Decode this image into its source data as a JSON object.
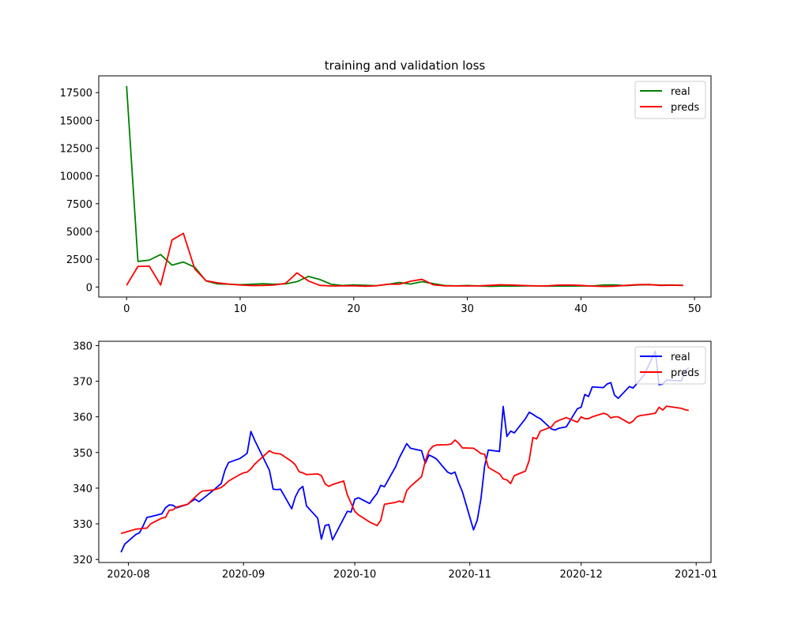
{
  "chart_data": [
    {
      "type": "line",
      "title": "training and validation loss",
      "xlabel": "",
      "ylabel": "",
      "xlim": [
        -2.45,
        51.45
      ],
      "ylim": [
        -905,
        19010
      ],
      "xticks": [
        0,
        10,
        20,
        30,
        40,
        50
      ],
      "xtick_labels": [
        "0",
        "10",
        "20",
        "30",
        "40",
        "50"
      ],
      "yticks": [
        0,
        2500,
        5000,
        7500,
        10000,
        12500,
        15000,
        17500
      ],
      "ytick_labels": [
        "0",
        "2500",
        "5000",
        "7500",
        "10000",
        "12500",
        "15000",
        "17500"
      ],
      "grid": false,
      "legend_position": "top-right",
      "x": [
        0,
        1,
        2,
        3,
        4,
        5,
        6,
        7,
        8,
        9,
        10,
        11,
        12,
        13,
        14,
        15,
        16,
        17,
        18,
        19,
        20,
        21,
        22,
        23,
        24,
        25,
        26,
        27,
        28,
        29,
        30,
        31,
        32,
        33,
        34,
        35,
        36,
        37,
        38,
        39,
        40,
        41,
        42,
        43,
        44,
        45,
        46,
        47,
        48,
        49
      ],
      "series": [
        {
          "name": "real",
          "color": "#008000",
          "values": [
            18100,
            2300,
            2420,
            2920,
            1970,
            2250,
            1780,
            540,
            280,
            250,
            200,
            250,
            290,
            250,
            280,
            480,
            950,
            680,
            250,
            130,
            190,
            150,
            120,
            230,
            410,
            260,
            480,
            300,
            130,
            100,
            130,
            100,
            60,
            80,
            80,
            90,
            110,
            80,
            80,
            80,
            90,
            90,
            180,
            190,
            120,
            180,
            210,
            170,
            180,
            150
          ]
        },
        {
          "name": "preds",
          "color": "#ff0000",
          "values": [
            150,
            1850,
            1880,
            180,
            4230,
            4830,
            1630,
            560,
            370,
            260,
            180,
            130,
            140,
            180,
            330,
            1270,
            550,
            150,
            90,
            100,
            110,
            70,
            110,
            250,
            250,
            520,
            690,
            200,
            100,
            100,
            90,
            100,
            150,
            200,
            170,
            130,
            100,
            100,
            170,
            180,
            140,
            80,
            50,
            70,
            150,
            210,
            220,
            140,
            160,
            140
          ]
        }
      ]
    },
    {
      "type": "line",
      "title": "",
      "xlabel": "",
      "ylabel": "",
      "x_type": "date",
      "xlim": [
        "2020-07-24",
        "2021-01-05"
      ],
      "ylim": [
        319.15,
        381.2
      ],
      "xticks": [
        "2020-08-01",
        "2020-09-01",
        "2020-10-01",
        "2020-11-01",
        "2020-12-01",
        "2021-01-01"
      ],
      "xtick_labels": [
        "2020-08",
        "2020-09",
        "2020-10",
        "2020-11",
        "2020-12",
        "2021-01"
      ],
      "yticks": [
        320,
        330,
        340,
        350,
        360,
        370,
        380
      ],
      "ytick_labels": [
        "320",
        "330",
        "340",
        "350",
        "360",
        "370",
        "380"
      ],
      "grid": false,
      "legend_position": "top-right",
      "x": [
        "2020-07-30",
        "2020-07-31",
        "2020-08-03",
        "2020-08-04",
        "2020-08-05",
        "2020-08-06",
        "2020-08-07",
        "2020-08-10",
        "2020-08-11",
        "2020-08-12",
        "2020-08-13",
        "2020-08-14",
        "2020-08-17",
        "2020-08-18",
        "2020-08-19",
        "2020-08-20",
        "2020-08-21",
        "2020-08-24",
        "2020-08-25",
        "2020-08-26",
        "2020-08-27",
        "2020-08-28",
        "2020-08-31",
        "2020-09-01",
        "2020-09-02",
        "2020-09-03",
        "2020-09-04",
        "2020-09-08",
        "2020-09-09",
        "2020-09-10",
        "2020-09-11",
        "2020-09-14",
        "2020-09-15",
        "2020-09-16",
        "2020-09-17",
        "2020-09-18",
        "2020-09-21",
        "2020-09-22",
        "2020-09-23",
        "2020-09-24",
        "2020-09-25",
        "2020-09-28",
        "2020-09-29",
        "2020-09-30",
        "2020-10-01",
        "2020-10-02",
        "2020-10-05",
        "2020-10-06",
        "2020-10-07",
        "2020-10-08",
        "2020-10-09",
        "2020-10-12",
        "2020-10-13",
        "2020-10-14",
        "2020-10-15",
        "2020-10-16",
        "2020-10-19",
        "2020-10-20",
        "2020-10-21",
        "2020-10-22",
        "2020-10-23",
        "2020-10-26",
        "2020-10-27",
        "2020-10-28",
        "2020-10-29",
        "2020-10-30",
        "2020-11-02",
        "2020-11-03",
        "2020-11-04",
        "2020-11-05",
        "2020-11-06",
        "2020-11-09",
        "2020-11-10",
        "2020-11-11",
        "2020-11-12",
        "2020-11-13",
        "2020-11-16",
        "2020-11-17",
        "2020-11-18",
        "2020-11-19",
        "2020-11-20",
        "2020-11-23",
        "2020-11-24",
        "2020-11-25",
        "2020-11-27",
        "2020-11-30",
        "2020-12-01",
        "2020-12-02",
        "2020-12-03",
        "2020-12-04",
        "2020-12-07",
        "2020-12-08",
        "2020-12-09",
        "2020-12-10",
        "2020-12-11",
        "2020-12-14",
        "2020-12-15",
        "2020-12-16",
        "2020-12-17",
        "2020-12-18",
        "2020-12-21",
        "2020-12-22",
        "2020-12-23",
        "2020-12-24",
        "2020-12-28",
        "2020-12-29",
        "2020-12-30"
      ],
      "series": [
        {
          "name": "real",
          "color": "#0000ff",
          "values": [
            322,
            324.3,
            327,
            327.5,
            329.5,
            331.8,
            332,
            332.8,
            334.5,
            335.3,
            335.2,
            334.5,
            335.5,
            336.3,
            336.9,
            336.2,
            337,
            339.5,
            340.4,
            341.3,
            345,
            347.2,
            348.3,
            349,
            349.8,
            355.9,
            353.5,
            345,
            339.7,
            339.6,
            339.7,
            334.2,
            337.6,
            339.6,
            340.5,
            335,
            331.6,
            325.7,
            329.5,
            329.8,
            325.5,
            331.5,
            333.5,
            333.3,
            336.9,
            337.3,
            335.7,
            337.2,
            338.5,
            340.8,
            340.4,
            346,
            348.5,
            350.5,
            352.5,
            351.2,
            350.5,
            347,
            349.3,
            348.8,
            348.2,
            344.5,
            344,
            344.5,
            341.5,
            339,
            328.3,
            331,
            337,
            346.2,
            350.7,
            350.3,
            362.9,
            354.5,
            356,
            355.5,
            359.5,
            361.3,
            360.7,
            360,
            359.5,
            356.6,
            356.3,
            356.8,
            357.2,
            362.3,
            362.7,
            366.3,
            365.7,
            368.4,
            368.2,
            369.2,
            369.6,
            366.1,
            365.2,
            368.5,
            368.1,
            369.3,
            370.5,
            371.8,
            378.4,
            369,
            369.2,
            370.3,
            370.1,
            372.7,
            373.8
          ]
        },
        {
          "name": "preds",
          "color": "#ff0000",
          "values": [
            327.3,
            327.6,
            328.5,
            328.6,
            328.7,
            328.8,
            330,
            331.6,
            331.8,
            333.8,
            333.9,
            334.7,
            335.5,
            336.5,
            337.5,
            338.5,
            339.2,
            339.5,
            339.8,
            340.2,
            341,
            342,
            343.8,
            344.3,
            344.5,
            345.4,
            346.7,
            350.5,
            349.9,
            349.7,
            349.6,
            347.5,
            346.5,
            344.6,
            344.3,
            343.8,
            344,
            343.5,
            341.2,
            340.5,
            341,
            342,
            338.1,
            335.8,
            333.5,
            332.5,
            330.5,
            330,
            329.5,
            331,
            335.5,
            336,
            336.4,
            336,
            339.3,
            340.5,
            343.2,
            347.6,
            350.5,
            351.7,
            352.1,
            352.2,
            352.4,
            353.5,
            352.6,
            351.3,
            351.2,
            350.5,
            349.7,
            349.5,
            345.8,
            344,
            342.6,
            342.3,
            341.3,
            343.5,
            344.8,
            347.8,
            354.2,
            353.8,
            356,
            357.2,
            358.5,
            359,
            359.8,
            358.5,
            360,
            359.5,
            359.5,
            360,
            361,
            360.7,
            359.7,
            360,
            360,
            358.2,
            358.8,
            360,
            360.4,
            360.5,
            361,
            362.7,
            361.9,
            363,
            362.4,
            362,
            361.8
          ]
        }
      ]
    }
  ]
}
